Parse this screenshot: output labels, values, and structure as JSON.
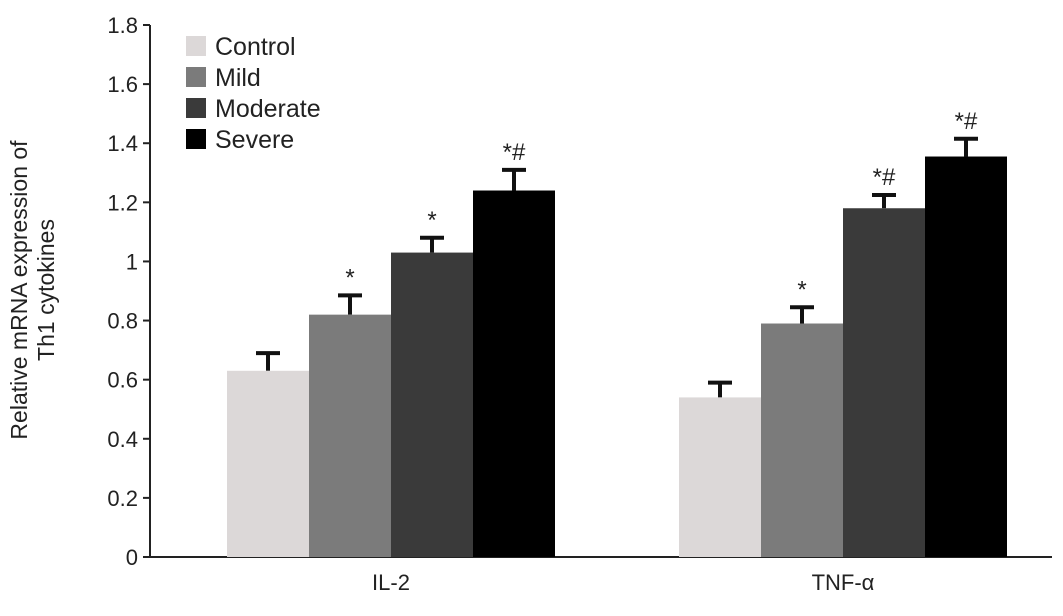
{
  "chart_data": {
    "type": "bar",
    "title": "",
    "xlabel": "",
    "ylabel": "Relative mRNA expression of Th1 cytokines",
    "ylabel_lines": [
      "Relative mRNA expression of",
      "Th1 cytokines"
    ],
    "ylim": [
      0,
      1.8
    ],
    "yticks": [
      0,
      0.2,
      0.4,
      0.6,
      0.8,
      1,
      1.2,
      1.4,
      1.6,
      1.8
    ],
    "ytick_labels": [
      "0",
      "0.2",
      "0.4",
      "0.6",
      "0.8",
      "1",
      "1.2",
      "1.4",
      "1.6",
      "1.8"
    ],
    "categories": [
      "IL-2",
      "TNF-α"
    ],
    "legend_position": "top-left",
    "grid": false,
    "series": [
      {
        "name": "Control",
        "color": "#dcd8d8",
        "values": [
          0.63,
          0.54
        ],
        "errors": [
          0.06,
          0.05
        ],
        "annotations": [
          "",
          ""
        ]
      },
      {
        "name": "Mild",
        "color": "#7b7b7b",
        "values": [
          0.82,
          0.79
        ],
        "errors": [
          0.065,
          0.055
        ],
        "annotations": [
          "*",
          "*"
        ]
      },
      {
        "name": "Moderate",
        "color": "#3a3a3a",
        "values": [
          1.03,
          1.18
        ],
        "errors": [
          0.05,
          0.045
        ],
        "annotations": [
          "*",
          "*#"
        ]
      },
      {
        "name": "Severe",
        "color": "#000000",
        "values": [
          1.24,
          1.355
        ],
        "errors": [
          0.07,
          0.06
        ],
        "annotations": [
          "*#",
          "*#"
        ]
      }
    ]
  }
}
